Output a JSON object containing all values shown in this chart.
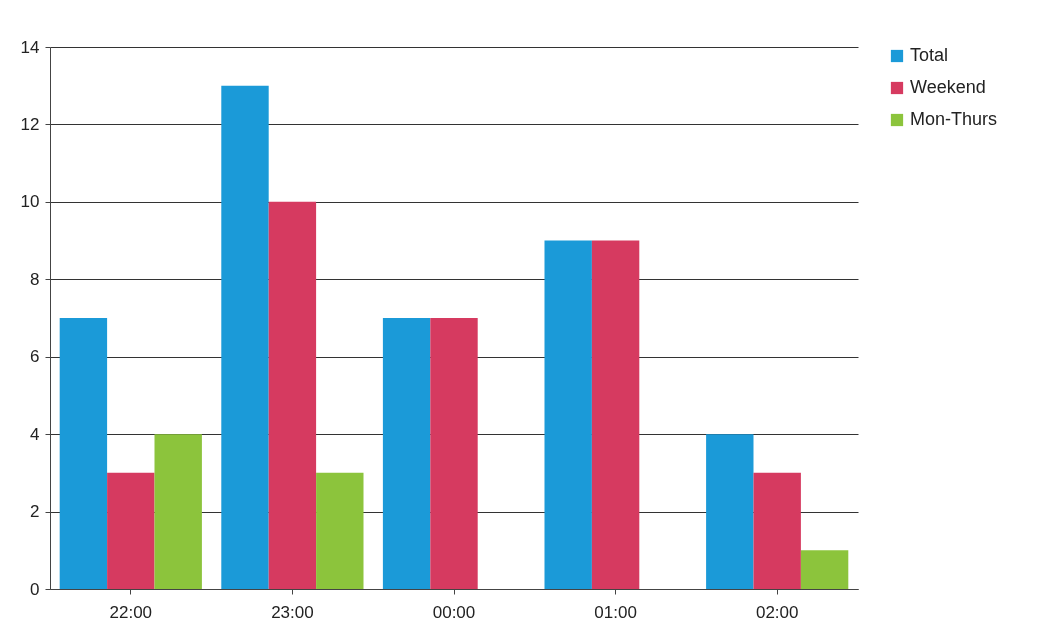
{
  "chart_data": {
    "type": "bar",
    "categories": [
      "22:00",
      "23:00",
      "00:00",
      "01:00",
      "02:00"
    ],
    "series": [
      {
        "name": "Total",
        "color": "#1b9ad8",
        "values": [
          7,
          13,
          7,
          9,
          4
        ]
      },
      {
        "name": "Weekend",
        "color": "#d63a60",
        "values": [
          3,
          10,
          7,
          9,
          3
        ]
      },
      {
        "name": "Mon-Thurs",
        "color": "#8cc43c",
        "values": [
          4,
          3,
          0,
          0,
          1
        ]
      }
    ],
    "ylim": [
      0,
      14
    ],
    "yticks": [
      0,
      2,
      4,
      6,
      8,
      10,
      12,
      14
    ],
    "grid": "y",
    "legend": "right"
  }
}
